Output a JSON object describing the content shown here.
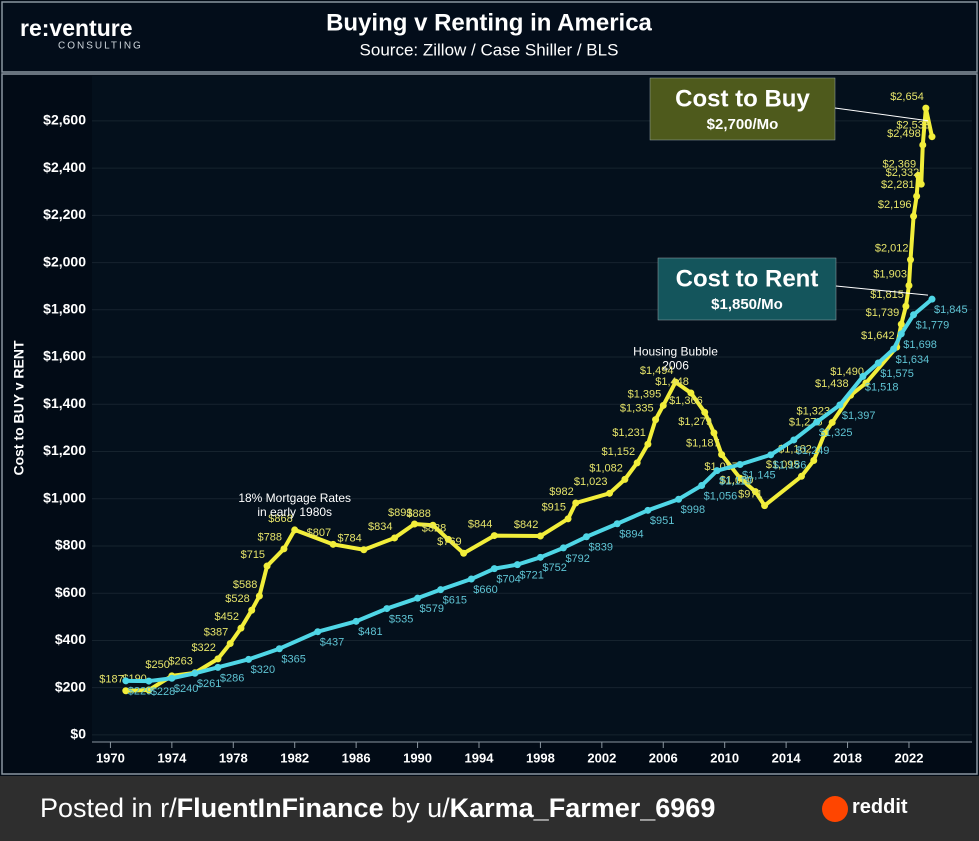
{
  "header": {
    "logo": "re:venture",
    "logo_sub": "CONSULTING"
  },
  "chart_data": {
    "type": "line",
    "title": "Buying v Renting in America",
    "subtitle": "Source: Zillow / Case Shiller / BLS",
    "y_label": "Cost to BUY v RENT",
    "xlim": [
      1968.8,
      2026.3
    ],
    "xticks": [
      1970,
      1974,
      1978,
      1982,
      1986,
      1990,
      1994,
      1998,
      2002,
      2006,
      2010,
      2014,
      2018,
      2022
    ],
    "ylim": [
      -30,
      2790
    ],
    "yticks": [
      {
        "value": 0,
        "label": "$0"
      },
      {
        "value": 200,
        "label": "$200"
      },
      {
        "value": 400,
        "label": "$400"
      },
      {
        "value": 600,
        "label": "$600"
      },
      {
        "value": 800,
        "label": "$800"
      },
      {
        "value": 1000,
        "label": "$1,000"
      },
      {
        "value": 1200,
        "label": "$1,200"
      },
      {
        "value": 1400,
        "label": "$1,400"
      },
      {
        "value": 1600,
        "label": "$1,600"
      },
      {
        "value": 1800,
        "label": "$1,800"
      },
      {
        "value": 2000,
        "label": "$2,000"
      },
      {
        "value": 2200,
        "label": "$2,200"
      },
      {
        "value": 2400,
        "label": "$2,400"
      },
      {
        "value": 2600,
        "label": "$2,600"
      }
    ],
    "grid": true,
    "series": [
      {
        "name": "Cost to Buy",
        "color": "#f2ee3a",
        "label_color": "#e6e46a",
        "box_color": "#4e5a1c",
        "box_value": "$2,700/Mo",
        "x": [
          1971,
          1972.5,
          1974,
          1975.5,
          1977,
          1977.8,
          1978.5,
          1979.2,
          1979.7,
          1980.2,
          1981.3,
          1982,
          1984.5,
          1986.5,
          1988.5,
          1989.8,
          1991,
          1992,
          1993,
          1995,
          1998,
          1999.8,
          2000.3,
          2002.5,
          2003.5,
          2004.3,
          2005,
          2005.5,
          2006,
          2006.8,
          2007.8,
          2008.7,
          2009.3,
          2009.8,
          2011,
          2012,
          2012.6,
          2015,
          2015.8,
          2016.5,
          2017,
          2018.2,
          2019.2,
          2021.2,
          2021.5,
          2021.8,
          2022,
          2022.1,
          2022.3,
          2022.5,
          2022.6,
          2022.8,
          2022.9,
          2023.1,
          2023.5
        ],
        "values": [
          187,
          190,
          250,
          263,
          322,
          387,
          452,
          528,
          588,
          715,
          788,
          868,
          807,
          784,
          834,
          893,
          888,
          828,
          769,
          844,
          842,
          915,
          982,
          1023,
          1082,
          1152,
          1231,
          1335,
          1395,
          1494,
          1448,
          1366,
          1279,
          1187,
          1087,
          1030,
          971,
          1095,
          1162,
          1275,
          1323,
          1438,
          1490,
          1642,
          1739,
          1815,
          1903,
          2012,
          2196,
          2281,
          2369,
          2332,
          2498,
          2654,
          2533
        ],
        "value_labels": [
          "$187",
          "$190",
          "$250",
          "$263",
          "$322",
          "$387",
          "$452",
          "$528",
          "$588",
          "$715",
          "$788",
          "$868",
          "$807",
          "$784",
          "$834",
          "$893",
          "$888",
          "$828",
          "$769",
          "$844",
          "$842",
          "$915",
          "$982",
          "$1,023",
          "$1,082",
          "$1,152",
          "$1,231",
          "$1,335",
          "$1,395",
          "$1,494",
          "$1,448",
          "$1,366",
          "$1,279",
          "$1,187",
          "$1,087",
          "$1,030",
          "$971",
          "$1,095",
          "$1,162",
          "$1,275",
          "$1,323",
          "$1,438",
          "$1,490",
          "$1,642",
          "$1,739",
          "$1,815",
          "$1,903",
          "$2,012",
          "$2,196",
          "$2,281",
          "$2,369",
          "$2,332",
          "$2,498",
          "$2,654",
          "$2,533"
        ]
      },
      {
        "name": "Cost to Rent",
        "color": "#4fd6e6",
        "label_color": "#5fc4d4",
        "box_color": "#14555c",
        "box_value": "$1,850/Mo",
        "x": [
          1971,
          1972.5,
          1974,
          1975.5,
          1977,
          1979,
          1981,
          1983.5,
          1986,
          1988,
          1990,
          1991.5,
          1993.5,
          1995,
          1996.5,
          1998,
          1999.5,
          2001,
          2003,
          2005,
          2007,
          2008.5,
          2009.5,
          2011,
          2013,
          2014.5,
          2016,
          2017.5,
          2019,
          2020,
          2021,
          2021.5,
          2022.3,
          2023.5
        ],
        "values": [
          229,
          228,
          240,
          261,
          286,
          320,
          365,
          437,
          481,
          535,
          579,
          615,
          660,
          704,
          721,
          752,
          792,
          839,
          894,
          951,
          998,
          1056,
          1119,
          1145,
          1186,
          1249,
          1325,
          1397,
          1518,
          1575,
          1634,
          1698,
          1779,
          1845
        ],
        "value_labels": [
          "$229",
          "$228",
          "$240",
          "$261",
          "$286",
          "$320",
          "$365",
          "$437",
          "$481",
          "$535",
          "$579",
          "$615",
          "$660",
          "$704",
          "$721",
          "$752",
          "$792",
          "$839",
          "$894",
          "$951",
          "$998",
          "$1,056",
          "$1,119",
          "$1,145",
          "$1,186",
          "$1,249",
          "$1,325",
          "$1,397",
          "$1,518",
          "$1,575",
          "$1,634",
          "$1,698",
          "$1,779",
          "$1,845"
        ]
      }
    ],
    "annotations": [
      {
        "lines": [
          "18% Mortgage Rates",
          "in early 1980s"
        ],
        "x": 1982,
        "y": 1000
      },
      {
        "lines": [
          "Housing Bubble",
          "2006"
        ],
        "x": 2006.8,
        "y": 1620
      }
    ]
  },
  "footer": {
    "prefix": "Posted in r/",
    "subreddit": "FluentInFinance",
    "middle": " by u/",
    "user": "Karma_Farmer_6969",
    "brand": "reddit"
  }
}
